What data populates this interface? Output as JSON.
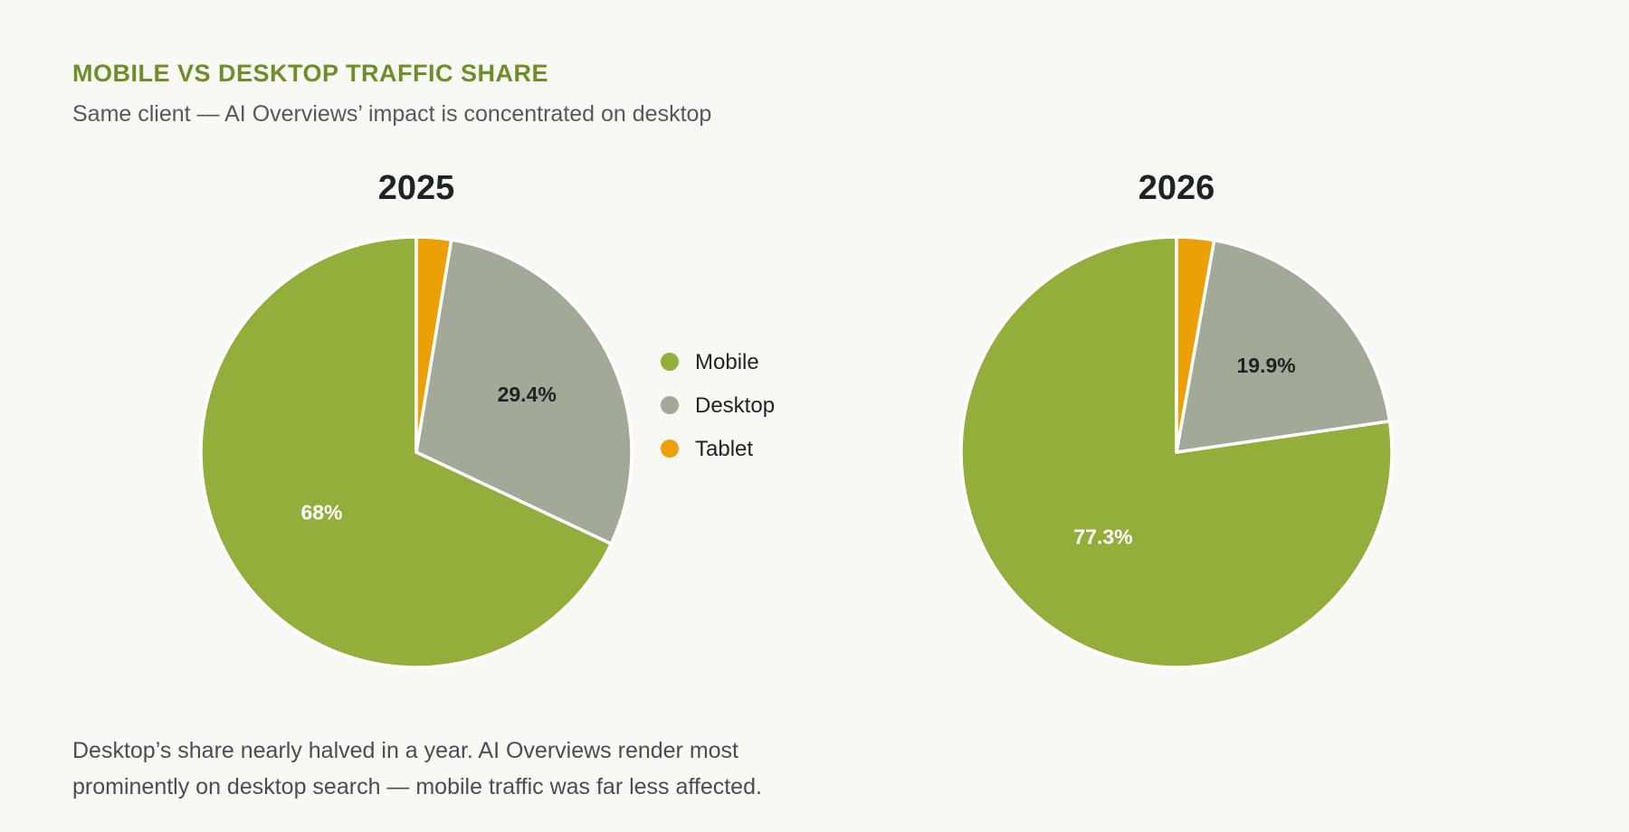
{
  "header": {
    "eyebrow": "MOBILE VS DESKTOP TRAFFIC SHARE",
    "subtitle": "Same client — AI Overviews’ impact is concentrated on desktop"
  },
  "footnote": {
    "line1": "Desktop’s share nearly halved in a year. AI Overviews render most",
    "line2": "prominently on desktop search — mobile traffic was far less affected."
  },
  "colors": {
    "mobile": "#93ae3b",
    "desktop": "#a3a998",
    "tablet": "#eba106"
  },
  "chart_data": [
    {
      "type": "pie",
      "title": "2025",
      "categories": [
        "Mobile",
        "Desktop",
        "Tablet"
      ],
      "values": [
        68,
        29.4,
        2.6
      ],
      "data_labels": [
        "68%",
        "29.4%",
        ""
      ]
    },
    {
      "type": "pie",
      "title": "2026",
      "categories": [
        "Mobile",
        "Desktop",
        "Tablet"
      ],
      "values": [
        77.3,
        19.9,
        2.8
      ],
      "data_labels": [
        "77.3%",
        "19.9%",
        ""
      ]
    }
  ],
  "legend": {
    "items": [
      "Mobile",
      "Desktop",
      "Tablet"
    ]
  }
}
